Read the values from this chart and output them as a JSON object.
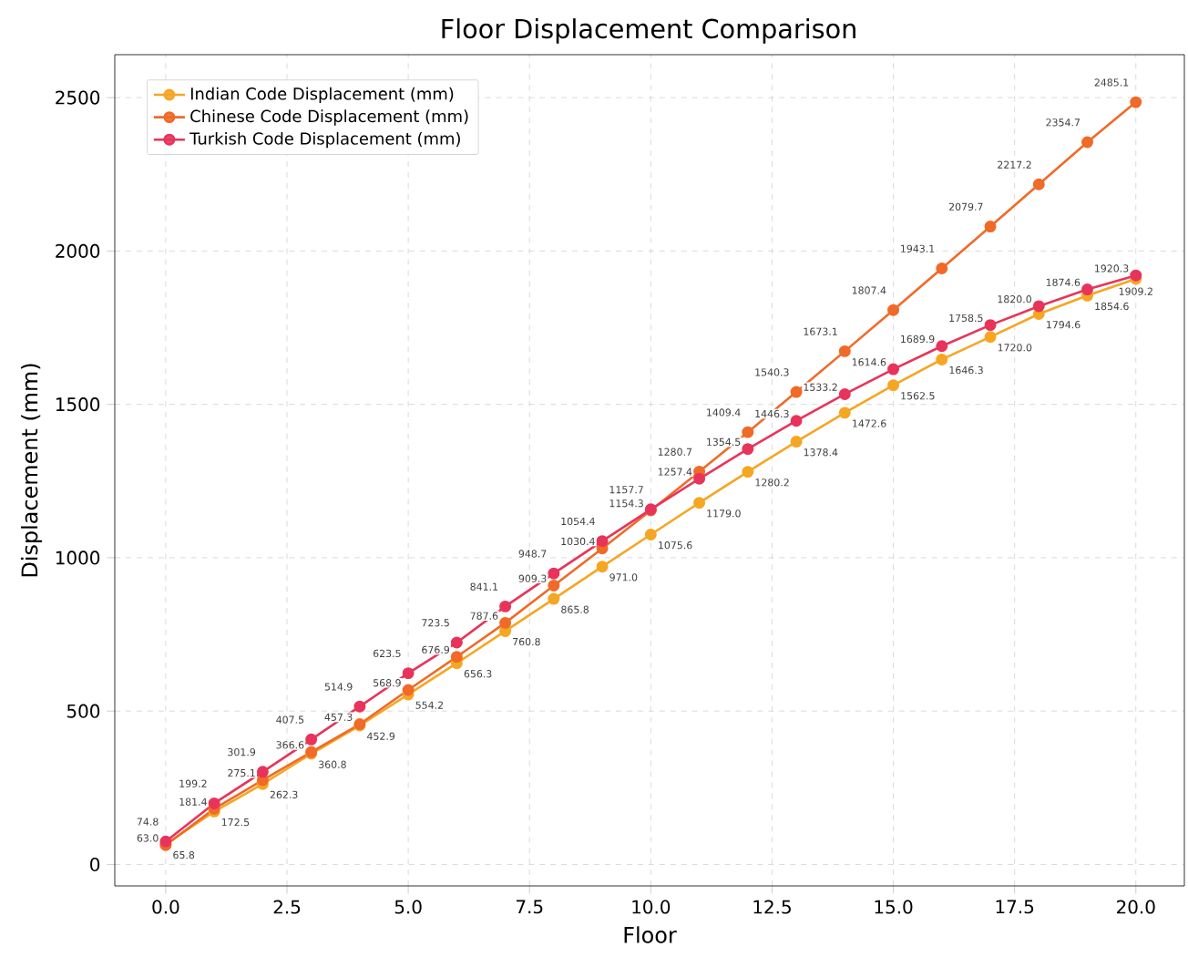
{
  "chart_data": {
    "type": "line",
    "title": "Floor Displacement Comparison",
    "xlabel": "Floor",
    "ylabel": "Displacement (mm)",
    "x": [
      0,
      1,
      2,
      3,
      4,
      5,
      6,
      7,
      8,
      9,
      10,
      11,
      12,
      13,
      14,
      15,
      16,
      17,
      18,
      19,
      20
    ],
    "series": [
      {
        "name": "Indian Code Displacement (mm)",
        "color": "#f5a623",
        "values": [
          65.8,
          172.5,
          262.3,
          360.8,
          452.9,
          554.2,
          656.3,
          760.8,
          865.8,
          971.0,
          1075.6,
          1179.0,
          1280.2,
          1378.4,
          1472.6,
          1562.5,
          1646.3,
          1720.0,
          1794.6,
          1854.6,
          1909.2
        ],
        "value_labels": [
          "65.8",
          "172.5",
          "262.3",
          "360.8",
          "452.9",
          "554.2",
          "656.3",
          "760.8",
          "865.8",
          "971.0",
          "1075.6",
          "1179.0",
          "1280.2",
          "1378.4",
          "1472.6",
          "1562.5",
          "1646.3",
          "1720.0",
          "1794.6",
          "1854.6",
          "1909.2"
        ]
      },
      {
        "name": "Chinese Code Displacement (mm)",
        "color": "#f06a28",
        "values": [
          63.0,
          181.4,
          275.1,
          366.6,
          457.3,
          568.9,
          676.9,
          787.6,
          909.3,
          1030.4,
          1154.3,
          1280.7,
          1409.4,
          1540.3,
          1673.1,
          1807.4,
          1943.1,
          2079.7,
          2217.2,
          2354.7,
          2485.1
        ],
        "value_labels": [
          "63.0",
          "181.4",
          "275.1",
          "366.6",
          "457.3",
          "568.9",
          "676.9",
          "787.6",
          "909.3",
          "1030.4",
          "1154.3",
          "1280.7",
          "1409.4",
          "1540.3",
          "1673.1",
          "1807.4",
          "1943.1",
          "2079.7",
          "2217.2",
          "2354.7",
          "2485.1"
        ]
      },
      {
        "name": "Turkish Code Displacement (mm)",
        "color": "#e8345a",
        "values": [
          74.8,
          199.2,
          301.9,
          407.5,
          514.9,
          623.5,
          723.5,
          841.1,
          948.7,
          1054.4,
          1157.7,
          1257.4,
          1354.5,
          1446.3,
          1533.2,
          1614.6,
          1689.9,
          1758.5,
          1820.0,
          1874.6,
          1920.3
        ],
        "value_labels": [
          "74.8",
          "199.2",
          "301.9",
          "407.5",
          "514.9",
          "623.5",
          "723.5",
          "841.1",
          "948.7",
          "1054.4",
          "1157.7",
          "1257.4",
          "1354.5",
          "1446.3",
          "1533.2",
          "1614.6",
          "1689.9",
          "1758.5",
          "1820.0",
          "1874.6",
          "1920.3"
        ]
      }
    ],
    "xlim": [
      -1.05,
      21.0
    ],
    "ylim": [
      -70,
      2640
    ],
    "xticks": [
      {
        "value": 0,
        "label": "0.0"
      },
      {
        "value": 2.5,
        "label": "2.5"
      },
      {
        "value": 5,
        "label": "5.0"
      },
      {
        "value": 7.5,
        "label": "7.5"
      },
      {
        "value": 10,
        "label": "10.0"
      },
      {
        "value": 12.5,
        "label": "12.5"
      },
      {
        "value": 15,
        "label": "15.0"
      },
      {
        "value": 17.5,
        "label": "17.5"
      },
      {
        "value": 20,
        "label": "20.0"
      }
    ],
    "yticks": [
      0,
      500,
      1000,
      1500,
      2000,
      2500
    ],
    "grid": true,
    "legend": "top left",
    "marker": "circle",
    "line_style": "solid"
  }
}
